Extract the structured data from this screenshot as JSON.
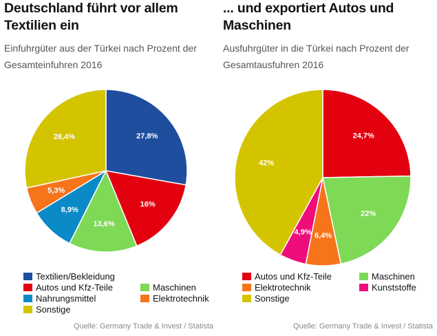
{
  "chart_data": [
    {
      "type": "pie",
      "title": "Deutschland führt vor allem Textilien ein",
      "subtitle": "Einfuhrgüter aus der Türkei nach Prozent der Gesamteinfuhren 2016",
      "slices": [
        {
          "name": "Textilien/Bekleidung",
          "value": 27.8,
          "label": "27,8%",
          "color": "#1f4e9e"
        },
        {
          "name": "Autos und Kfz-Teile",
          "value": 16.0,
          "label": "16%",
          "color": "#e3000f"
        },
        {
          "name": "Maschinen",
          "value": 13.6,
          "label": "13,6%",
          "color": "#7ed957"
        },
        {
          "name": "Nahrungsmittel",
          "value": 8.9,
          "label": "8,9%",
          "color": "#0a8ac6"
        },
        {
          "name": "Elektrotechnik",
          "value": 5.3,
          "label": "5,3%",
          "color": "#f7741b"
        },
        {
          "name": "Sonstige",
          "value": 28.4,
          "label": "28,4%",
          "color": "#d4c400"
        }
      ],
      "legend_rows": [
        [
          {
            "name": "Textilien/Bekleidung",
            "color": "#1f4e9e"
          }
        ],
        [
          {
            "name": "Autos und Kfz-Teile",
            "color": "#e3000f"
          },
          {
            "name": "Maschinen",
            "color": "#7ed957"
          }
        ],
        [
          {
            "name": "Nahrungsmittel",
            "color": "#0a8ac6"
          },
          {
            "name": "Elektrotechnik",
            "color": "#f7741b"
          }
        ],
        [
          {
            "name": "Sonstige",
            "color": "#d4c400"
          }
        ]
      ],
      "source": "Quelle: Germany Trade & Invest / Statista"
    },
    {
      "type": "pie",
      "title": "... und exportiert Autos und Maschinen",
      "subtitle": "Ausfuhrgüter in die Türkei nach Prozent der Gesamtausfuhren 2016",
      "slices": [
        {
          "name": "Autos und Kfz-Teile",
          "value": 24.7,
          "label": "24,7%",
          "color": "#e3000f"
        },
        {
          "name": "Maschinen",
          "value": 22.0,
          "label": "22%",
          "color": "#7ed957"
        },
        {
          "name": "Elektrotechnik",
          "value": 6.4,
          "label": "6,4%",
          "color": "#f7741b"
        },
        {
          "name": "Kunststoffe",
          "value": 4.9,
          "label": "4,9%",
          "color": "#ee0d7b"
        },
        {
          "name": "Sonstige",
          "value": 42.0,
          "label": "42%",
          "color": "#d4c400"
        }
      ],
      "legend_rows": [
        [
          {
            "name": "Autos und Kfz-Teile",
            "color": "#e3000f"
          },
          {
            "name": "Maschinen",
            "color": "#7ed957"
          }
        ],
        [
          {
            "name": "Elektrotechnik",
            "color": "#f7741b"
          },
          {
            "name": "Kunststoffe",
            "color": "#ee0d7b"
          }
        ],
        [
          {
            "name": "Sonstige",
            "color": "#d4c400"
          }
        ]
      ],
      "source": "Quelle: Germany Trade & Invest / Statista"
    }
  ]
}
